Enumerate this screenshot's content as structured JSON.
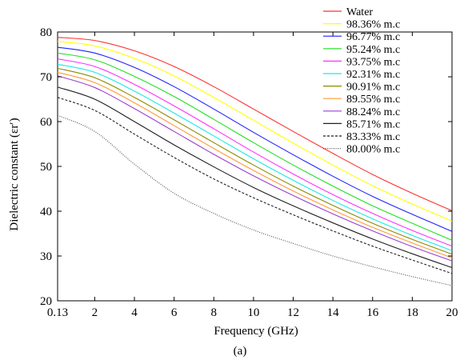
{
  "chart_data": {
    "type": "line",
    "title": "",
    "xlabel": "Frequency (GHz)",
    "ylabel": "Dielectric constant (εr′)",
    "caption": "(a)",
    "xlim": [
      0.13,
      20
    ],
    "ylim": [
      20,
      80
    ],
    "xticks": [
      "0.13",
      "2",
      "4",
      "6",
      "8",
      "10",
      "12",
      "14",
      "16",
      "18",
      "20"
    ],
    "yticks": [
      "20",
      "30",
      "40",
      "50",
      "60",
      "70",
      "80"
    ],
    "grid": false,
    "legend_position": "top-right",
    "x": [
      0.13,
      2,
      4,
      6,
      8,
      10,
      12,
      14,
      16,
      18,
      20
    ],
    "series": [
      {
        "name": "Water",
        "color": "#ff3030",
        "dash": "solid",
        "values": [
          78.8,
          78.1,
          75.8,
          72.3,
          67.8,
          62.8,
          57.8,
          52.9,
          48.2,
          44.0,
          40.1
        ]
      },
      {
        "name": "98.36% m.c",
        "color": "#ffff00",
        "dash": "solid",
        "values": [
          77.9,
          76.9,
          74.1,
          70.2,
          65.4,
          60.3,
          55.2,
          50.3,
          45.7,
          41.6,
          37.8
        ]
      },
      {
        "name": "96.77% m.c",
        "color": "#2020ff",
        "dash": "solid",
        "values": [
          76.6,
          75.3,
          72.1,
          67.8,
          62.8,
          57.6,
          52.6,
          47.8,
          43.3,
          39.3,
          35.5
        ]
      },
      {
        "name": "95.24% m.c",
        "color": "#20e020",
        "dash": "solid",
        "values": [
          75.3,
          73.8,
          70.1,
          65.6,
          60.5,
          55.3,
          50.3,
          45.6,
          41.2,
          37.3,
          33.5
        ]
      },
      {
        "name": "93.75% m.c",
        "color": "#ff30ff",
        "dash": "solid",
        "values": [
          74.0,
          72.3,
          68.3,
          63.5,
          58.4,
          53.2,
          48.3,
          43.7,
          39.5,
          35.7,
          32.2
        ]
      },
      {
        "name": "92.31% m.c",
        "color": "#20e8e8",
        "dash": "solid",
        "values": [
          72.8,
          71.0,
          66.8,
          61.9,
          56.8,
          51.7,
          46.9,
          42.4,
          38.3,
          34.6,
          31.2
        ]
      },
      {
        "name": "90.91% m.c",
        "color": "#8a8a00",
        "dash": "solid",
        "values": [
          71.9,
          69.8,
          65.4,
          60.4,
          55.3,
          50.3,
          45.6,
          41.3,
          37.3,
          33.7,
          30.4
        ]
      },
      {
        "name": "89.55% m.c",
        "color": "#ff9a3a",
        "dash": "solid",
        "values": [
          71.0,
          68.7,
          64.2,
          59.1,
          54.0,
          49.1,
          44.5,
          40.3,
          36.4,
          32.9,
          29.6
        ]
      },
      {
        "name": "88.24% m.c",
        "color": "#9a40d0",
        "dash": "solid",
        "values": [
          70.2,
          67.6,
          62.9,
          57.8,
          52.7,
          47.9,
          43.5,
          39.4,
          35.6,
          32.1,
          28.9
        ]
      },
      {
        "name": "85.71% m.c",
        "color": "#202020",
        "dash": "solid",
        "values": [
          67.7,
          65.0,
          60.0,
          54.8,
          49.9,
          45.3,
          41.2,
          37.4,
          33.8,
          30.5,
          27.4
        ]
      },
      {
        "name": "83.33% m.c",
        "color": "#202020",
        "dash": "dashed",
        "values": [
          65.4,
          62.5,
          57.2,
          52.0,
          47.2,
          43.0,
          39.2,
          35.6,
          32.2,
          29.1,
          26.1
        ]
      },
      {
        "name": "80.00% m.c",
        "color": "#505050",
        "dash": "dotted",
        "values": [
          61.4,
          57.8,
          50.5,
          44.0,
          39.5,
          35.8,
          32.8,
          30.0,
          27.6,
          25.4,
          23.4
        ]
      }
    ]
  }
}
